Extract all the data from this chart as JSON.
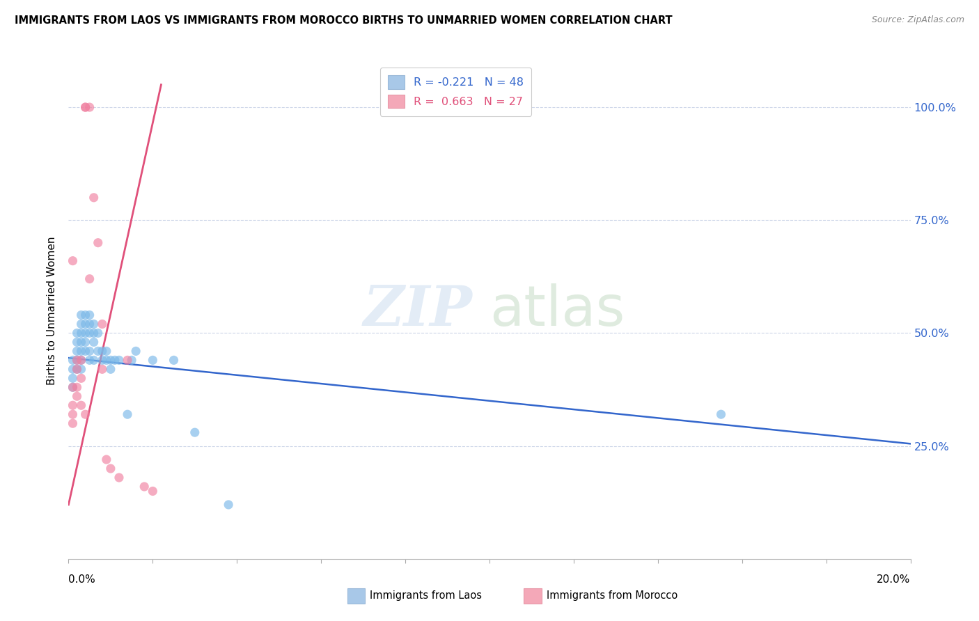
{
  "title": "IMMIGRANTS FROM LAOS VS IMMIGRANTS FROM MOROCCO BIRTHS TO UNMARRIED WOMEN CORRELATION CHART",
  "source": "Source: ZipAtlas.com",
  "ylabel": "Births to Unmarried Women",
  "legend1_label": "R = -0.221   N = 48",
  "legend2_label": "R =  0.663   N = 27",
  "legend1_color": "#a8c8e8",
  "legend2_color": "#f4a8b8",
  "blue_color": "#7ab8e8",
  "pink_color": "#f080a0",
  "trend_blue": "#3366cc",
  "trend_pink": "#e0507a",
  "blue_label": "Immigrants from Laos",
  "pink_label": "Immigrants from Morocco",
  "blue_points": [
    [
      0.001,
      0.44
    ],
    [
      0.001,
      0.42
    ],
    [
      0.001,
      0.4
    ],
    [
      0.001,
      0.38
    ],
    [
      0.002,
      0.5
    ],
    [
      0.002,
      0.48
    ],
    [
      0.002,
      0.46
    ],
    [
      0.002,
      0.44
    ],
    [
      0.002,
      0.42
    ],
    [
      0.003,
      0.54
    ],
    [
      0.003,
      0.52
    ],
    [
      0.003,
      0.5
    ],
    [
      0.003,
      0.48
    ],
    [
      0.003,
      0.46
    ],
    [
      0.003,
      0.44
    ],
    [
      0.003,
      0.42
    ],
    [
      0.004,
      0.54
    ],
    [
      0.004,
      0.52
    ],
    [
      0.004,
      0.5
    ],
    [
      0.004,
      0.48
    ],
    [
      0.004,
      0.46
    ],
    [
      0.005,
      0.54
    ],
    [
      0.005,
      0.52
    ],
    [
      0.005,
      0.5
    ],
    [
      0.005,
      0.46
    ],
    [
      0.005,
      0.44
    ],
    [
      0.006,
      0.52
    ],
    [
      0.006,
      0.5
    ],
    [
      0.006,
      0.48
    ],
    [
      0.006,
      0.44
    ],
    [
      0.007,
      0.5
    ],
    [
      0.007,
      0.46
    ],
    [
      0.008,
      0.46
    ],
    [
      0.008,
      0.44
    ],
    [
      0.009,
      0.46
    ],
    [
      0.009,
      0.44
    ],
    [
      0.01,
      0.44
    ],
    [
      0.01,
      0.42
    ],
    [
      0.011,
      0.44
    ],
    [
      0.012,
      0.44
    ],
    [
      0.014,
      0.32
    ],
    [
      0.015,
      0.44
    ],
    [
      0.016,
      0.46
    ],
    [
      0.02,
      0.44
    ],
    [
      0.025,
      0.44
    ],
    [
      0.03,
      0.28
    ],
    [
      0.038,
      0.12
    ],
    [
      0.155,
      0.32
    ]
  ],
  "pink_points": [
    [
      0.001,
      0.38
    ],
    [
      0.001,
      0.34
    ],
    [
      0.001,
      0.32
    ],
    [
      0.001,
      0.3
    ],
    [
      0.001,
      0.66
    ],
    [
      0.002,
      0.44
    ],
    [
      0.002,
      0.42
    ],
    [
      0.002,
      0.38
    ],
    [
      0.002,
      0.36
    ],
    [
      0.003,
      0.44
    ],
    [
      0.003,
      0.4
    ],
    [
      0.003,
      0.34
    ],
    [
      0.004,
      1.0
    ],
    [
      0.004,
      1.0
    ],
    [
      0.004,
      0.32
    ],
    [
      0.005,
      1.0
    ],
    [
      0.005,
      0.62
    ],
    [
      0.006,
      0.8
    ],
    [
      0.007,
      0.7
    ],
    [
      0.008,
      0.52
    ],
    [
      0.008,
      0.42
    ],
    [
      0.009,
      0.22
    ],
    [
      0.01,
      0.2
    ],
    [
      0.012,
      0.18
    ],
    [
      0.014,
      0.44
    ],
    [
      0.018,
      0.16
    ],
    [
      0.02,
      0.15
    ]
  ],
  "blue_trend_x": [
    0.0,
    0.2
  ],
  "blue_trend_y": [
    0.445,
    0.255
  ],
  "pink_trend_x": [
    0.0,
    0.022
  ],
  "pink_trend_y": [
    0.12,
    1.05
  ],
  "xlim": [
    0.0,
    0.2
  ],
  "ylim": [
    0.0,
    1.1
  ],
  "ytick_vals": [
    0.25,
    0.5,
    0.75,
    1.0
  ],
  "ytick_labels": [
    "25.0%",
    "50.0%",
    "75.0%",
    "100.0%"
  ],
  "xtick_vals": [
    0.0,
    0.02,
    0.04,
    0.06,
    0.08,
    0.1,
    0.12,
    0.14,
    0.16,
    0.18,
    0.2
  ],
  "figsize": [
    14.06,
    8.92
  ],
  "dpi": 100
}
